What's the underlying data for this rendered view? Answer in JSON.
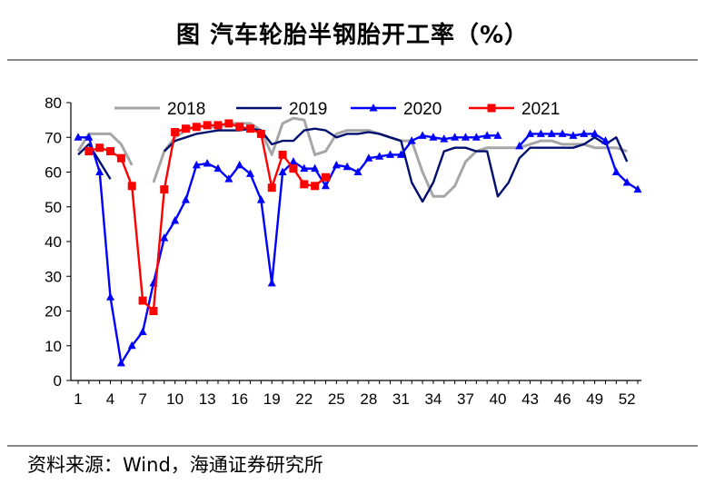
{
  "title": "图  汽车轮胎半钢胎开工率（%）",
  "source": "资料来源：Wind，海通证券研究所",
  "chart_data": {
    "type": "line",
    "title": "图  汽车轮胎半钢胎开工率（%）",
    "xlabel": "",
    "ylabel": "",
    "ylim": [
      0,
      80
    ],
    "xlim": [
      1,
      53
    ],
    "yticks": [
      0,
      10,
      20,
      30,
      40,
      50,
      60,
      70,
      80
    ],
    "xticks": [
      1,
      4,
      7,
      10,
      13,
      16,
      19,
      22,
      25,
      28,
      31,
      34,
      37,
      40,
      43,
      46,
      49,
      52
    ],
    "legend": "top",
    "series": [
      {
        "name": "2018",
        "color": "#a6a6a6",
        "marker": "none",
        "points": [
          [
            1,
            66
          ],
          [
            2,
            71
          ],
          [
            3,
            71
          ],
          [
            4,
            71
          ],
          [
            5,
            68
          ],
          [
            6,
            62
          ],
          [
            null,
            null
          ],
          [
            8,
            57
          ],
          [
            9,
            66
          ],
          [
            10,
            70
          ],
          [
            11,
            72
          ],
          [
            12,
            73
          ],
          [
            13,
            73
          ],
          [
            14,
            73
          ],
          [
            15,
            74
          ],
          [
            16,
            74
          ],
          [
            17,
            74
          ],
          [
            18,
            72
          ],
          [
            19,
            65
          ],
          [
            20,
            74
          ],
          [
            21,
            75.5
          ],
          [
            22,
            75
          ],
          [
            23,
            65
          ],
          [
            24,
            66
          ],
          [
            25,
            71
          ],
          [
            26,
            72
          ],
          [
            27,
            72
          ],
          [
            28,
            72
          ],
          [
            29,
            71
          ],
          [
            30,
            70
          ],
          [
            31,
            69
          ],
          [
            32,
            69
          ],
          [
            33,
            60
          ],
          [
            34,
            53
          ],
          [
            35,
            53
          ],
          [
            36,
            56
          ],
          [
            37,
            63
          ],
          [
            38,
            66
          ],
          [
            39,
            67
          ],
          [
            40,
            67
          ],
          [
            41,
            67
          ],
          [
            42,
            67
          ],
          [
            43,
            68
          ],
          [
            44,
            69
          ],
          [
            45,
            69
          ],
          [
            46,
            68
          ],
          [
            47,
            68
          ],
          [
            48,
            68
          ],
          [
            49,
            67
          ],
          [
            50,
            67
          ],
          [
            51,
            67
          ],
          [
            52,
            66
          ]
        ]
      },
      {
        "name": "2019",
        "color": "#000f6e",
        "marker": "none",
        "points": [
          [
            1,
            65
          ],
          [
            2,
            68
          ],
          [
            3,
            63
          ],
          [
            4,
            58
          ],
          [
            null,
            null
          ],
          [
            9,
            66
          ],
          [
            10,
            69
          ],
          [
            11,
            70
          ],
          [
            12,
            71
          ],
          [
            13,
            71.5
          ],
          [
            14,
            72
          ],
          [
            15,
            72
          ],
          [
            16,
            72
          ],
          [
            17,
            72.5
          ],
          [
            18,
            72
          ],
          [
            19,
            68
          ],
          [
            20,
            69
          ],
          [
            21,
            69
          ],
          [
            22,
            72
          ],
          [
            23,
            72.5
          ],
          [
            24,
            72
          ],
          [
            25,
            70
          ],
          [
            26,
            71
          ],
          [
            27,
            71
          ],
          [
            28,
            71.5
          ],
          [
            29,
            71
          ],
          [
            30,
            70
          ],
          [
            31,
            69
          ],
          [
            32,
            57
          ],
          [
            33,
            51.5
          ],
          [
            34,
            57
          ],
          [
            35,
            66
          ],
          [
            36,
            67
          ],
          [
            37,
            67
          ],
          [
            38,
            66
          ],
          [
            39,
            66
          ],
          [
            40,
            53
          ],
          [
            41,
            57
          ],
          [
            42,
            64
          ],
          [
            43,
            67
          ],
          [
            44,
            67
          ],
          [
            45,
            67
          ],
          [
            46,
            67
          ],
          [
            47,
            67
          ],
          [
            48,
            68
          ],
          [
            49,
            70
          ],
          [
            50,
            68
          ],
          [
            51,
            70
          ],
          [
            52,
            63
          ]
        ]
      },
      {
        "name": "2020",
        "color": "#0000ff",
        "marker": "triangle",
        "points": [
          [
            1,
            70
          ],
          [
            2,
            70
          ],
          [
            3,
            60
          ],
          [
            4,
            24
          ],
          [
            5,
            5
          ],
          [
            6,
            10
          ],
          [
            7,
            14
          ],
          [
            8,
            28
          ],
          [
            9,
            41
          ],
          [
            10,
            46
          ],
          [
            11,
            52
          ],
          [
            12,
            62
          ],
          [
            13,
            62.5
          ],
          [
            14,
            61
          ],
          [
            15,
            58
          ],
          [
            16,
            62
          ],
          [
            17,
            59.5
          ],
          [
            18,
            52
          ],
          [
            19,
            28
          ],
          [
            20,
            60
          ],
          [
            21,
            63
          ],
          [
            22,
            61
          ],
          [
            23,
            61
          ],
          [
            24,
            56
          ],
          [
            25,
            62
          ],
          [
            26,
            61.5
          ],
          [
            27,
            60
          ],
          [
            28,
            64
          ],
          [
            29,
            64.5
          ],
          [
            30,
            65
          ],
          [
            31,
            65
          ],
          [
            32,
            69
          ],
          [
            33,
            70.5
          ],
          [
            34,
            70
          ],
          [
            35,
            69.5
          ],
          [
            36,
            70
          ],
          [
            37,
            70
          ],
          [
            38,
            70
          ],
          [
            39,
            70.5
          ],
          [
            40,
            70.5
          ],
          [
            null,
            null
          ],
          [
            42,
            67.5
          ],
          [
            43,
            71
          ],
          [
            44,
            71
          ],
          [
            45,
            71
          ],
          [
            46,
            71
          ],
          [
            47,
            70.5
          ],
          [
            48,
            71
          ],
          [
            49,
            71
          ],
          [
            50,
            69
          ],
          [
            51,
            60
          ],
          [
            52,
            57
          ],
          [
            53,
            55
          ]
        ]
      },
      {
        "name": "2021",
        "color": "#ff0000",
        "marker": "square",
        "points": [
          [
            2,
            66
          ],
          [
            3,
            67
          ],
          [
            4,
            66
          ],
          [
            5,
            64
          ],
          [
            6,
            56
          ],
          [
            7,
            23
          ],
          [
            8,
            20
          ],
          [
            9,
            55
          ],
          [
            10,
            71.5
          ],
          [
            11,
            72.5
          ],
          [
            12,
            73
          ],
          [
            13,
            73.5
          ],
          [
            14,
            73.5
          ],
          [
            15,
            74
          ],
          [
            16,
            73
          ],
          [
            17,
            72.5
          ],
          [
            18,
            71
          ],
          [
            19,
            55.5
          ],
          [
            20,
            65
          ],
          [
            21,
            61
          ],
          [
            22,
            56.5
          ],
          [
            23,
            56
          ],
          [
            24,
            58.5
          ]
        ]
      }
    ]
  }
}
